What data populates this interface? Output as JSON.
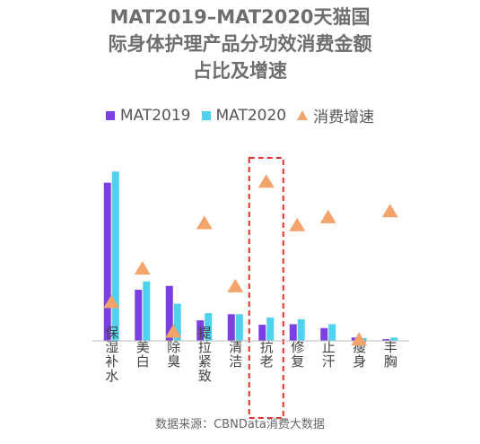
{
  "title_lines": [
    "MAT2019–MAT2020天猫国",
    "际身体护理产品分功效消费金额",
    "占比及增速"
  ],
  "footnote": "数据来源：CBNData消费大数据",
  "colors": {
    "mat2019": "#7b3fe4",
    "mat2020": "#4fd2f0",
    "growth": "#f2a46a",
    "highlight": "#e2322b",
    "axis": "#bdbdbd"
  },
  "chart_data": {
    "type": "bar",
    "categories": [
      "保湿补水",
      "美白",
      "除臭",
      "提拉紧致",
      "清洁",
      "抗老",
      "修复",
      "止汗",
      "瘦身",
      "丰胸"
    ],
    "series": [
      {
        "name": "MAT2019",
        "kind": "bar",
        "values": [
          28.5,
          9.2,
          9.9,
          3.7,
          4.8,
          2.9,
          3.0,
          2.3,
          0.6,
          0.3
        ]
      },
      {
        "name": "MAT2020",
        "kind": "bar",
        "values": [
          30.5,
          10.7,
          6.7,
          5.0,
          4.8,
          4.2,
          3.9,
          3.0,
          0.5,
          0.6
        ]
      },
      {
        "name": "消费增速",
        "kind": "marker",
        "values": [
          20,
          37,
          5,
          60,
          28,
          81,
          59,
          63,
          1,
          66
        ]
      }
    ],
    "highlight_category": "抗老",
    "ylim_share": [
      0,
      32
    ],
    "ylim_growth": [
      0,
      90
    ],
    "legend_position": "top",
    "grid": false,
    "axis_labels_visible": false
  }
}
